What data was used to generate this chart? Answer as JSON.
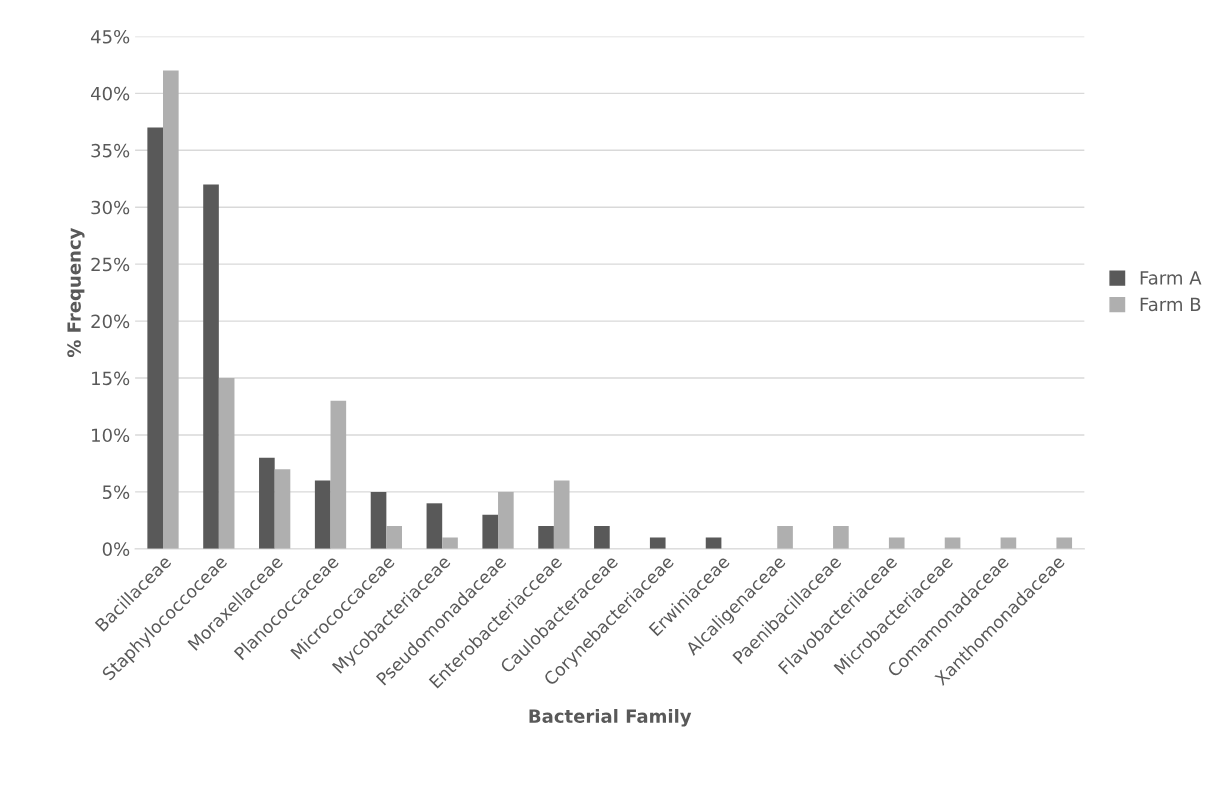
{
  "chart_data": {
    "type": "bar",
    "xlabel": "Bacterial Family",
    "ylabel": "% Frequency",
    "categories": [
      "Bacillaceae",
      "Staphylococcoceae",
      "Moraxellaceae",
      "Planococcaceae",
      "Micrococcaceae",
      "Mycobacteriaceae",
      "Pseudomonadaceae",
      "Enterobacteriacceae",
      "Caulobacteraceae",
      "Corynebacteriaceae",
      "Erwiniaceae",
      "Alcaligenaceae",
      "Paenibacillaceae",
      "Flavobacteriaceae",
      "Microbacteriaceae",
      "Comamonadaceae",
      "Xanthomonadaceae"
    ],
    "series": [
      {
        "name": "Farm A",
        "color": "#595959",
        "values": [
          37,
          32,
          8,
          6,
          5,
          4,
          3,
          2,
          2,
          1,
          1,
          0,
          0,
          0,
          0,
          0,
          0
        ]
      },
      {
        "name": "Farm B",
        "color": "#afafaf",
        "values": [
          42,
          15,
          7,
          13,
          2,
          1,
          5,
          6,
          0,
          0,
          0,
          2,
          2,
          1,
          1,
          1,
          1
        ]
      }
    ],
    "ylim": [
      0,
      45
    ],
    "yticks": [
      {
        "value": 0,
        "label": "0%"
      },
      {
        "value": 5,
        "label": "5%"
      },
      {
        "value": 10,
        "label": "10%"
      },
      {
        "value": 15,
        "label": "15%"
      },
      {
        "value": 20,
        "label": "20%"
      },
      {
        "value": 25,
        "label": "25%"
      },
      {
        "value": 30,
        "label": "30%"
      },
      {
        "value": 35,
        "label": "35%"
      },
      {
        "value": 40,
        "label": "40%"
      },
      {
        "value": 45,
        "label": "45%"
      }
    ],
    "grid": "y",
    "legend": "right"
  }
}
